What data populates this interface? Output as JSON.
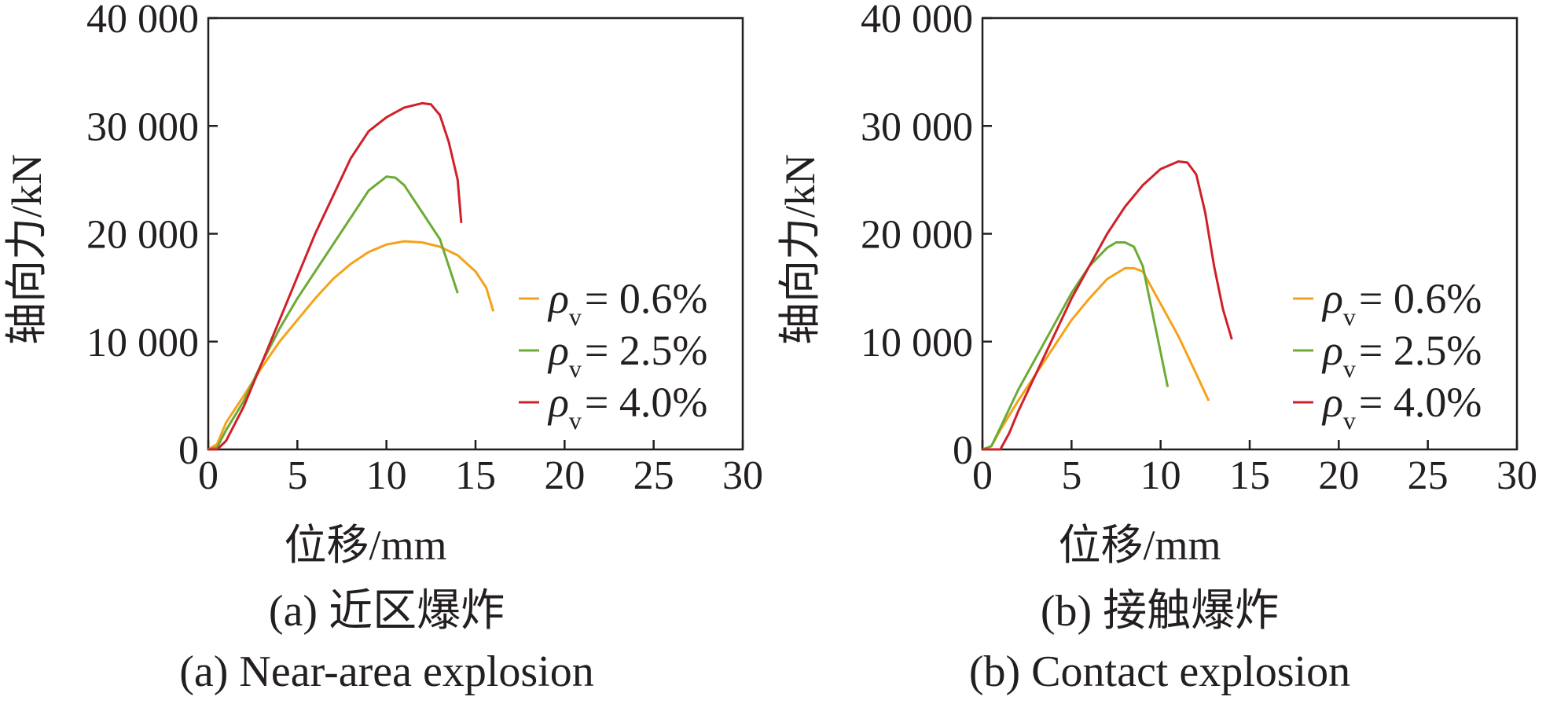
{
  "chart_data": [
    {
      "type": "line",
      "xlabel": "位移/mm",
      "ylabel": "轴向力/kN",
      "xlim": [
        0,
        30
      ],
      "ylim": [
        0,
        40000
      ],
      "xticks": [
        "0",
        "5",
        "10",
        "15",
        "20",
        "25",
        "30"
      ],
      "yticks": [
        "0",
        "10 000",
        "20 000",
        "30 000",
        "40 000"
      ],
      "grid": false,
      "legend_position": "right",
      "caption_cn": "(a) 近区爆炸",
      "caption_en": "(a) Near-area explosion",
      "series": [
        {
          "name": "ρv = 0.6%",
          "symbol": "ρ",
          "sub": "v",
          "value": "= 0.6%",
          "color": "#f5a21b",
          "x": [
            0,
            0.5,
            1,
            2,
            3,
            4,
            5,
            6,
            7,
            8,
            9,
            10,
            11,
            12,
            13,
            14,
            15,
            15.6,
            16
          ],
          "y": [
            0,
            500,
            2500,
            5000,
            7600,
            10000,
            12000,
            14000,
            15800,
            17200,
            18300,
            19000,
            19300,
            19200,
            18800,
            18000,
            16500,
            15000,
            12800
          ]
        },
        {
          "name": "ρv = 2.5%",
          "symbol": "ρ",
          "sub": "v",
          "value": "= 2.5%",
          "color": "#6cab36",
          "x": [
            0,
            0.5,
            1,
            2,
            3,
            4,
            5,
            6,
            7,
            8,
            9,
            10,
            10.5,
            11,
            12,
            13,
            13.5,
            14
          ],
          "y": [
            0,
            200,
            1800,
            4500,
            8000,
            11200,
            14000,
            16500,
            19000,
            21500,
            24000,
            25300,
            25200,
            24500,
            22000,
            19500,
            17000,
            14500
          ]
        },
        {
          "name": "ρv = 4.0%",
          "symbol": "ρ",
          "sub": "v",
          "value": "= 4.0%",
          "color": "#d02029",
          "x": [
            0,
            0.5,
            1,
            2,
            3,
            4,
            5,
            6,
            7,
            8,
            9,
            10,
            11,
            12,
            12.5,
            13,
            13.5,
            14,
            14.2
          ],
          "y": [
            0,
            0,
            800,
            4000,
            8000,
            12000,
            16000,
            20000,
            23500,
            27000,
            29500,
            30800,
            31700,
            32100,
            32000,
            31000,
            28500,
            25000,
            21000
          ]
        }
      ]
    },
    {
      "type": "line",
      "xlabel": "位移/mm",
      "ylabel": "轴向力/kN",
      "xlim": [
        0,
        30
      ],
      "ylim": [
        0,
        40000
      ],
      "xticks": [
        "0",
        "5",
        "10",
        "15",
        "20",
        "25",
        "30"
      ],
      "yticks": [
        "0",
        "10 000",
        "20 000",
        "30 000",
        "40 000"
      ],
      "grid": false,
      "legend_position": "right",
      "caption_cn": "(b) 接触爆炸",
      "caption_en": "(b) Contact explosion",
      "series": [
        {
          "name": "ρv = 0.6%",
          "symbol": "ρ",
          "sub": "v",
          "value": "= 0.6%",
          "color": "#f5a21b",
          "x": [
            0,
            0.5,
            1,
            2,
            3,
            4,
            5,
            6,
            7,
            8,
            8.5,
            9,
            10,
            11,
            12,
            12.7
          ],
          "y": [
            0,
            300,
            1800,
            4500,
            7000,
            9500,
            12000,
            14000,
            15800,
            16800,
            16800,
            16500,
            13500,
            10500,
            7000,
            4500
          ]
        },
        {
          "name": "ρv = 2.5%",
          "symbol": "ρ",
          "sub": "v",
          "value": "= 2.5%",
          "color": "#6cab36",
          "x": [
            0,
            0.5,
            1,
            2,
            3,
            4,
            5,
            6,
            7,
            7.5,
            8,
            8.5,
            9,
            9.5,
            10,
            10.4
          ],
          "y": [
            0,
            300,
            2000,
            5500,
            8500,
            11500,
            14500,
            17000,
            18700,
            19200,
            19200,
            18800,
            17000,
            13000,
            9000,
            5800
          ]
        },
        {
          "name": "ρv = 4.0%",
          "symbol": "ρ",
          "sub": "v",
          "value": "= 4.0%",
          "color": "#d02029",
          "x": [
            0,
            1,
            1.5,
            2,
            3,
            4,
            5,
            6,
            7,
            8,
            9,
            10,
            11,
            11.5,
            12,
            12.5,
            13,
            13.5,
            14
          ],
          "y": [
            0,
            0,
            1500,
            3500,
            7000,
            10500,
            14000,
            17000,
            20000,
            22500,
            24500,
            26000,
            26700,
            26600,
            25500,
            22000,
            17000,
            13000,
            10200
          ]
        }
      ]
    }
  ]
}
